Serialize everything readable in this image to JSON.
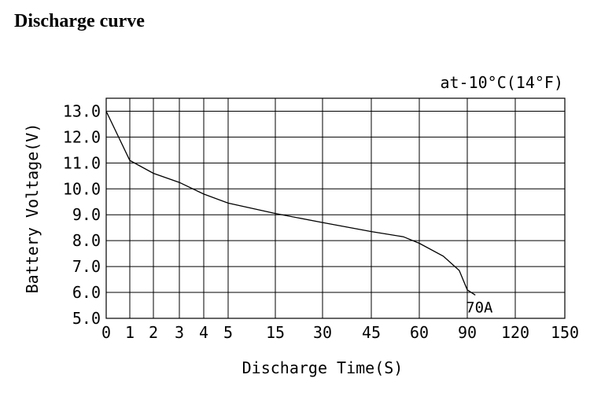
{
  "page_title": "Discharge curve",
  "chart_data": {
    "type": "line",
    "annotation": "at-10°C(14°F)",
    "ylabel": "Battery Voltage(V)",
    "xlabel": "Discharge Time(S)",
    "x_ticks": [
      "0",
      "1",
      "2",
      "3",
      "4",
      "5",
      "15",
      "30",
      "45",
      "60",
      "90",
      "120",
      "150"
    ],
    "y_ticks": [
      "13.0",
      "12.0",
      "11.0",
      "10.0",
      "9.0",
      "8.0",
      "7.0",
      "6.0",
      "5.0"
    ],
    "ylim": [
      5,
      13.5
    ],
    "grid": true,
    "series": [
      {
        "name": "70A",
        "x": [
          0,
          1,
          2,
          3,
          4,
          5,
          10,
          15,
          30,
          45,
          55,
          60,
          75,
          85,
          90,
          95
        ],
        "y": [
          13.0,
          11.1,
          10.6,
          10.25,
          9.8,
          9.45,
          9.25,
          9.05,
          8.7,
          8.35,
          8.15,
          7.9,
          7.4,
          6.85,
          6.1,
          5.9
        ]
      }
    ]
  }
}
